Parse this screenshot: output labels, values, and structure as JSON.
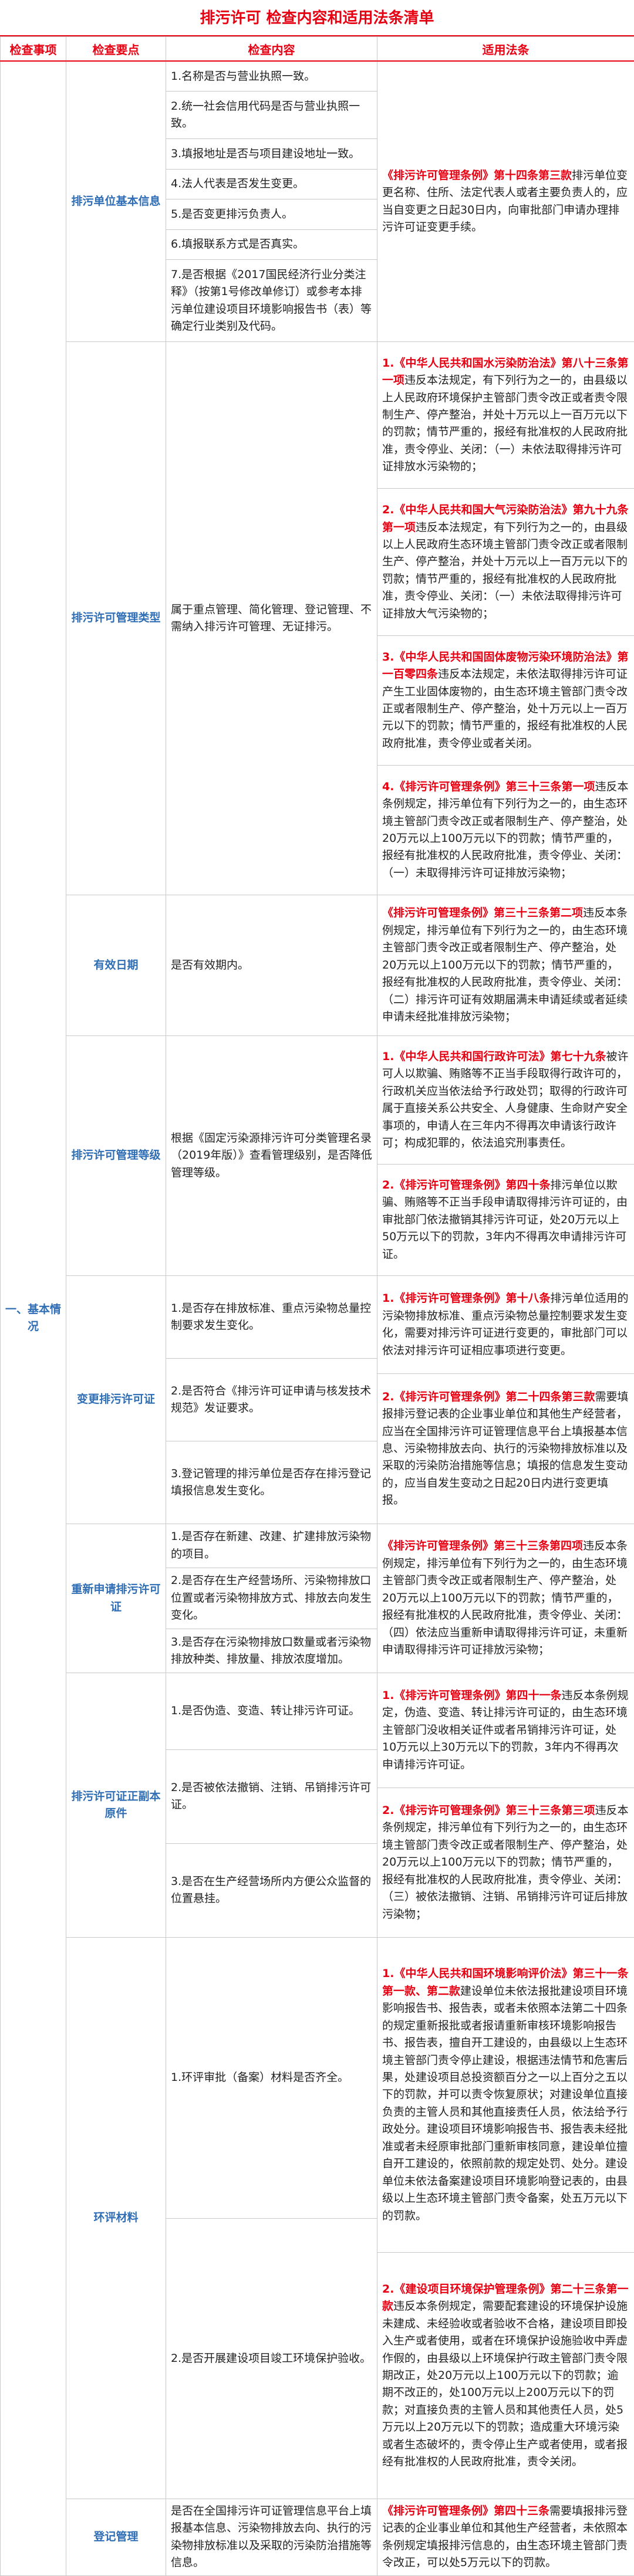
{
  "title": "排污许可 检查内容和适用法条清单",
  "table": {
    "header": [
      "检查事项",
      "检查要点",
      "检查内容",
      "适用法条"
    ],
    "section": "一、基本情况",
    "groups": [
      {
        "item": "排污单位基本信息",
        "contents": [
          "1.名称是否与营业执照一致。",
          "2.统一社会信用代码是否与营业执照一致。",
          "3.填报地址是否与项目建设地址一致。",
          "4.法人代表是否发生变更。",
          "5.是否变更排污负责人。",
          "6.填报联系方式是否真实。",
          "7.是否根据《2017国民经济行业分类注释》（按第1号修改单修订）或参考本排污单位建设项目环境影响报告书（表）等确定行业类别及代码。"
        ],
        "laws": [
          {
            "ref": "《排污许可管理条例》第十四条第三款",
            "text": "排污单位变更名称、住所、法定代表人或者主要负责人的，应当自变更之日起30日内，向审批部门申请办理排污许可证变更手续。"
          }
        ]
      },
      {
        "item": "排污许可管理类型",
        "contents": [
          "属于重点管理、简化管理、登记管理、不需纳入排污许可管理、无证排污。"
        ],
        "laws": [
          {
            "ref": "1.《中华人民共和国水污染防治法》第八十三条第一项",
            "text": "违反本法规定，有下列行为之一的，由县级以上人民政府环境保护主管部门责令改正或者责令限制生产、停产整治，并处十万元以上一百万元以下的罚款；情节严重的，报经有批准权的人民政府批准，责令停业、关闭：（一）未依法取得排污许可证排放水污染物的；"
          },
          {
            "ref": "2.《中华人民共和国大气污染防治法》第九十九条第一项",
            "text": "违反本法规定，有下列行为之一的，由县级以上人民政府生态环境主管部门责令改正或者限制生产、停产整治，并处十万元以上一百万元以下的罚款；情节严重的，报经有批准权的人民政府批准，责令停业、关闭：（一）未依法取得排污许可证排放大气污染物的；"
          },
          {
            "ref": "3.《中华人民共和国固体废物污染环境防治法》第一百零四条",
            "text": "违反本法规定，未依法取得排污许可证产生工业固体废物的，由生态环境主管部门责令改正或者限制生产、停产整治，处十万元以上一百万元以下的罚款；情节严重的，报经有批准权的人民政府批准，责令停业或者关闭。"
          },
          {
            "ref": "4.《排污许可管理条例》第三十三条第一项",
            "text": "违反本条例规定，排污单位有下列行为之一的，由生态环境主管部门责令改正或者限制生产、停产整治，处20万元以上100万元以下的罚款；情节严重的，报经有批准权的人民政府批准，责令停业、关闭：（一）未取得排污许可证排放污染物；"
          }
        ]
      },
      {
        "item": "有效日期",
        "contents": [
          "是否有效期内。"
        ],
        "laws": [
          {
            "ref": "《排污许可管理条例》第三十三条第二项",
            "text": "违反本条例规定，排污单位有下列行为之一的，由生态环境主管部门责令改正或者限制生产、停产整治，处20万元以上100万元以下的罚款；情节严重的，报经有批准权的人民政府批准，责令停业、关闭：（二）排污许可证有效期届满未申请延续或者延续申请未经批准排放污染物；"
          }
        ]
      },
      {
        "item": "排污许可管理等级",
        "contents": [
          "根据《固定污染源排污许可分类管理名录（2019年版）》查看管理级别，是否降低管理等级。"
        ],
        "laws": [
          {
            "ref": "1.《中华人民共和国行政许可法》第七十九条",
            "text": "被许可人以欺骗、贿赂等不正当手段取得行政许可的，行政机关应当依法给予行政处罚；取得的行政许可属于直接关系公共安全、人身健康、生命财产安全事项的，申请人在三年内不得再次申请该行政许可；构成犯罪的，依法追究刑事责任。"
          },
          {
            "ref": "2.《排污许可管理条例》第四十条",
            "text": "排污单位以欺骗、贿赂等不正当手段申请取得排污许可证的，由审批部门依法撤销其排污许可证，处20万元以上50万元以下的罚款，3年内不得再次申请排污许可证。"
          }
        ]
      },
      {
        "item": "变更排污许可证",
        "contents": [
          "1.是否存在排放标准、重点污染物总量控制要求发生变化。",
          "2.是否符合《排污许可证申请与核发技术规范》发证要求。",
          "3.登记管理的排污单位是否存在排污登记填报信息发生变化。"
        ],
        "laws": [
          {
            "ref": "1.《排污许可管理条例》第十八条",
            "text": "排污单位适用的污染物排放标准、重点污染物总量控制要求发生变化，需要对排污许可证进行变更的，审批部门可以依法对排污许可证相应事项进行变更。"
          },
          {
            "ref": "2.《排污许可管理条例》第二十四条第三款",
            "text": "需要填报排污登记表的企业事业单位和其他生产经营者，应当在全国排污许可证管理信息平台上填报基本信息、污染物排放去向、执行的污染物排放标准以及采取的污染防治措施等信息；填报的信息发生变动的，应当自发生变动之日起20日内进行变更填报。"
          }
        ]
      },
      {
        "item": "重新申请排污许可证",
        "contents": [
          "1.是否存在新建、改建、扩建排放污染物的项目。",
          "2.是否存在生产经营场所、污染物排放口位置或者污染物排放方式、排放去向发生变化。",
          "3.是否存在污染物排放口数量或者污染物排放种类、排放量、排放浓度增加。"
        ],
        "laws": [
          {
            "ref": "《排污许可管理条例》第三十三条第四项",
            "text": "违反本条例规定，排污单位有下列行为之一的，由生态环境主管部门责令改正或者限制生产、停产整治，处20万元以上100万元以下的罚款；情节严重的，报经有批准权的人民政府批准，责令停业、关闭：（四）依法应当重新申请取得排污许可证，未重新申请取得排污许可证排放污染物；"
          }
        ]
      },
      {
        "item": "排污许可证正副本原件",
        "contents": [
          "1.是否伪造、变造、转让排污许可证。",
          "2.是否被依法撤销、注销、吊销排污许可证。",
          "3.是否在生产经营场所内方便公众监督的位置悬挂。"
        ],
        "laws": [
          {
            "ref": "1.《排污许可管理条例》第四十一条",
            "text": "违反本条例规定，伪造、变造、转让排污许可证的，由生态环境主管部门没收相关证件或者吊销排污许可证，处10万元以上30万元以下的罚款，3年内不得再次申请排污许可证。"
          },
          {
            "ref": "2.《排污许可管理条例》第三十三条第三项",
            "text": "违反本条例规定，排污单位有下列行为之一的，由生态环境主管部门责令改正或者限制生产、停产整治，处20万元以上100万元以下的罚款；情节严重的，报经有批准权的人民政府批准，责令停业、关闭：（三）被依法撤销、注销、吊销排污许可证后排放污染物；"
          }
        ]
      },
      {
        "item": "环评材料",
        "contents": [
          "1.环评审批（备案）材料是否齐全。",
          "2.是否开展建设项目竣工环境保护验收。"
        ],
        "laws": [
          {
            "ref": "1.《中华人民共和国环境影响评价法》第三十一条第一款、第二款",
            "text": "建设单位未依法报批建设项目环境影响报告书、报告表，或者未依照本法第二十四条的规定重新报批或者报请重新审核环境影响报告书、报告表，擅自开工建设的，由县级以上生态环境主管部门责令停止建设，根据违法情节和危害后果，处建设项目总投资额百分之一以上百分之五以下的罚款，并可以责令恢复原状；对建设单位直接负责的主管人员和其他直接责任人员，依法给予行政处分。建设项目环境影响报告书、报告表未经批准或者未经原审批部门重新审核同意，建设单位擅自开工建设的，依照前款的规定处罚、处分。建设单位未依法备案建设项目环境影响登记表的，由县级以上生态环境主管部门责令备案，处五万元以下的罚款。"
          },
          {
            "ref": "2.《建设项目环境保护管理条例》第二十三条第一款",
            "text": "违反本条例规定，需要配套建设的环境保护设施未建成、未经验收或者验收不合格，建设项目即投入生产或者使用，或者在环境保护设施验收中弄虚作假的，由县级以上环境保护行政主管部门责令限期改正，处20万元以上100万元以下的罚款；逾期不改正的，处100万元以上200万元以下的罚款；对直接负责的主管人员和其他责任人员，处5万元以上20万元以下的罚款；造成重大环境污染或者生态破坏的，责令停止生产或者使用，或者报经有批准权的人民政府批准，责令关闭。"
          }
        ]
      },
      {
        "item": "登记管理",
        "contents": [
          "是否在全国排污许可证管理信息平台上填报基本信息、污染物排放去向、执行的污染物排放标准以及采取的污染防治措施等信息。"
        ],
        "laws": [
          {
            "ref": "《排污许可管理条例》第四十三条",
            "text": "需要填报排污登记表的企业事业单位和其他生产经营者，未依照本条例规定填报排污信息的，由生态环境主管部门责令改正，可以处5万元以下的罚款。"
          }
        ]
      }
    ]
  }
}
